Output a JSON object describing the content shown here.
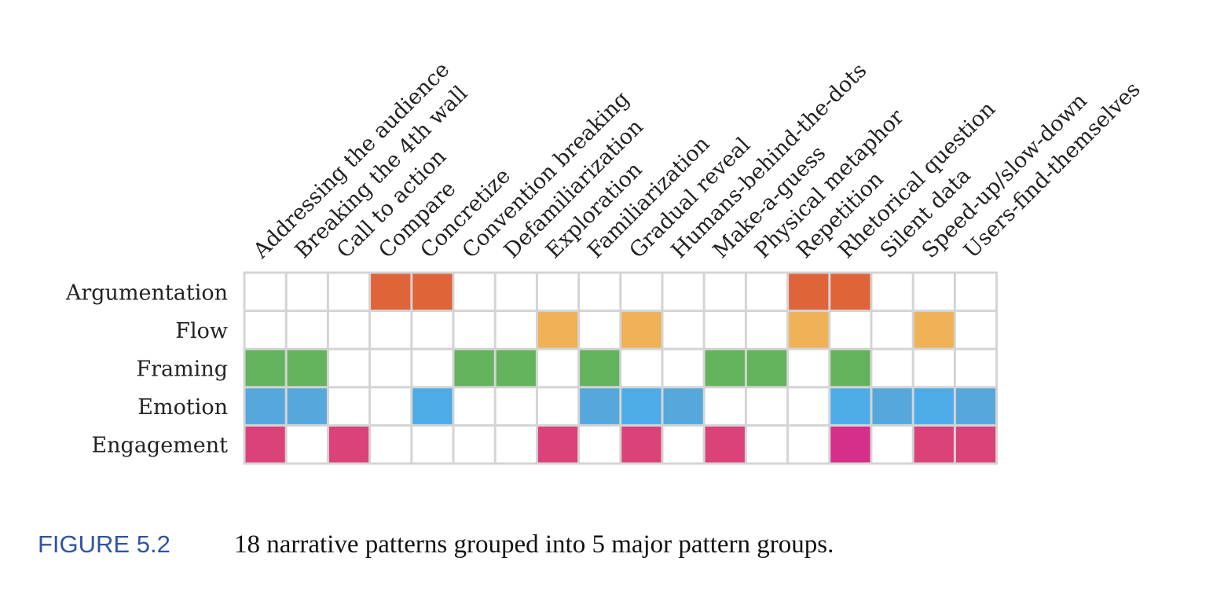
{
  "chart_data": {
    "type": "heatmap",
    "columns": [
      "Addressing the audience",
      "Breaking the 4th wall",
      "Call to action",
      "Compare",
      "Concretize",
      "Convention breaking",
      "Defamiliarization",
      "Exploration",
      "Familiarization",
      "Gradual reveal",
      "Humans-behind-the-dots",
      "Make-a-guess",
      "Physical metaphor",
      "Repetition",
      "Rhetorical question",
      "Silent data",
      "Speed-up/slow-down",
      "Users-find-themselves"
    ],
    "rows": [
      "Argumentation",
      "Flow",
      "Framing",
      "Emotion",
      "Engagement"
    ],
    "colors": {
      "o": "#DF643A",
      "y": "#EFB257",
      "g": "#63B35C",
      "b": "#55A8DB",
      "c": "#4DABE8",
      "p": "#DB4279",
      "m": "#D62F89",
      "grid": "#D4D4D4"
    },
    "cells": [
      "...oo........oo...",
      ".......y.y...y..y.",
      "gg...gg.g..gg.g...",
      "bb..c...bcb...cbcb",
      "p.p....p.p.p..m.pp"
    ]
  },
  "caption": {
    "label": "FIGURE 5.2",
    "text": "18 narrative patterns grouped into 5 major pattern groups."
  }
}
